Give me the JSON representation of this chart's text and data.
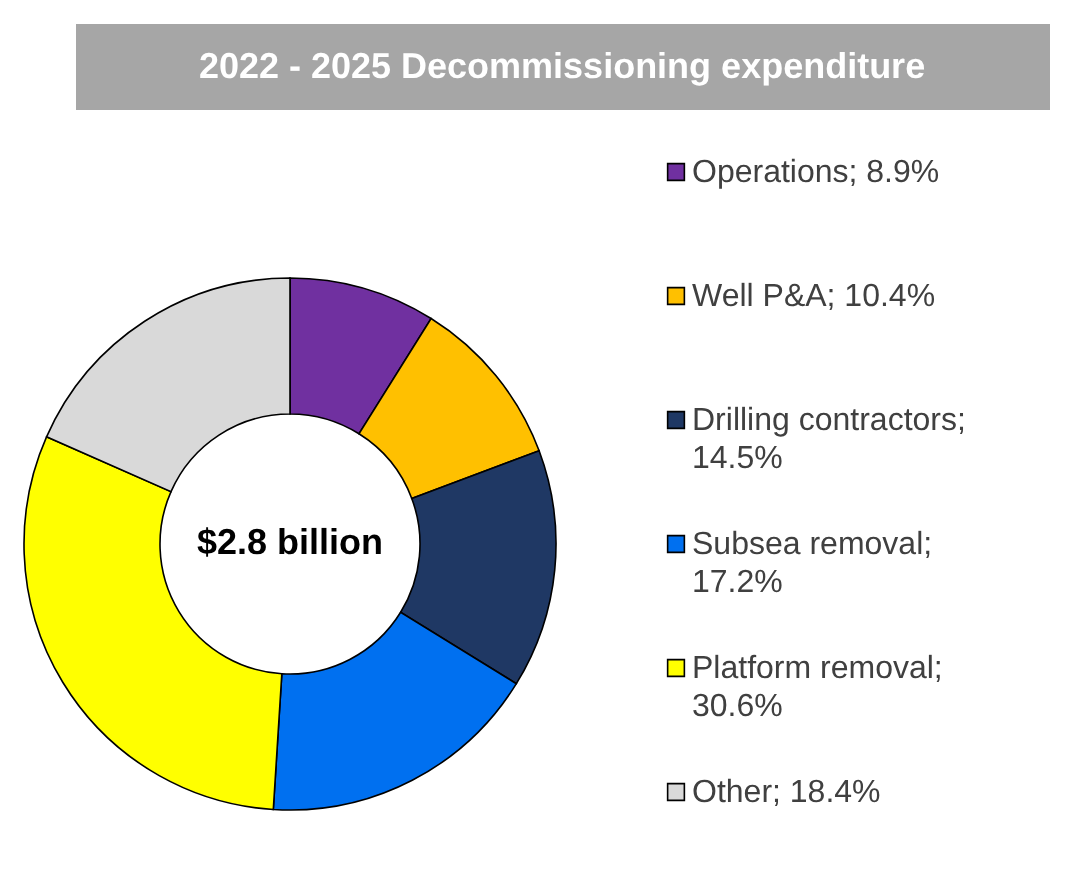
{
  "chart_data": {
    "type": "donut",
    "title": "2022 - 2025 Decommissioning expenditure",
    "categories": [
      "Operations; 8.9%",
      "Well P&A; 10.4%",
      "Drilling contractors; 14.5%",
      "Subsea removal; 17.2%",
      "Platform removal; 30.6%",
      "Other; 18.4%"
    ],
    "values": [
      8.9,
      10.4,
      14.5,
      17.2,
      30.6,
      18.4
    ],
    "colors": [
      "#7030a0",
      "#ffc000",
      "#1f3864",
      "#0070f0",
      "#ffff00",
      "#d9d9d9"
    ],
    "annotations": [
      "$2.8 billion"
    ],
    "legend": "right"
  }
}
